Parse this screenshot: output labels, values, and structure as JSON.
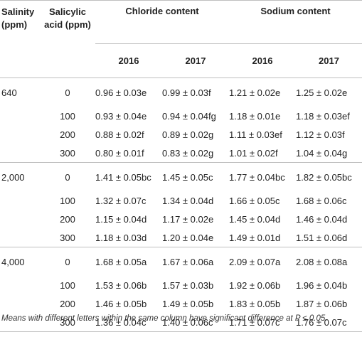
{
  "table": {
    "headers": {
      "salinity": "Salinity",
      "salinity_unit": "(ppm)",
      "salicylic": "Salicylic",
      "salicylic_unit": "acid (ppm)",
      "chloride": "Chloride content",
      "sodium": "Sodium content",
      "y2016a": "2016",
      "y2017a": "2017",
      "y2016b": "2016",
      "y2017b": "2017"
    },
    "groups": [
      {
        "salinity": "640",
        "rows": [
          {
            "sa": "0",
            "cl16": "0.96 ± 0.03e",
            "cl17": "0.99 ± 0.03f",
            "na16": "1.21 ± 0.02e",
            "na17": "1.25 ± 0.02e"
          },
          {
            "sa": "100",
            "cl16": "0.93 ± 0.04e",
            "cl17": "0.94 ± 0.04fg",
            "na16": "1.18 ± 0.01e",
            "na17": "1.18 ± 0.03ef"
          },
          {
            "sa": "200",
            "cl16": "0.88 ± 0.02f",
            "cl17": "0.89 ± 0.02g",
            "na16": "1.11 ± 0.03ef",
            "na17": "1.12 ± 0.03f"
          },
          {
            "sa": "300",
            "cl16": "0.80 ± 0.01f",
            "cl17": "0.83 ± 0.02g",
            "na16": "1.01 ± 0.02f",
            "na17": "1.04 ± 0.04g"
          }
        ]
      },
      {
        "salinity": "2,000",
        "rows": [
          {
            "sa": "0",
            "cl16": "1.41 ± 0.05bc",
            "cl17": "1.45 ± 0.05c",
            "na16": "1.77 ± 0.04bc",
            "na17": "1.82 ± 0.05bc"
          },
          {
            "sa": "100",
            "cl16": "1.32 ± 0.07c",
            "cl17": "1.34 ± 0.04d",
            "na16": "1.66 ± 0.05c",
            "na17": "1.68 ± 0.06c"
          },
          {
            "sa": "200",
            "cl16": "1.15 ± 0.04d",
            "cl17": "1.17 ± 0.02e",
            "na16": "1.45 ± 0.04d",
            "na17": "1.46 ± 0.04d"
          },
          {
            "sa": "300",
            "cl16": "1.18 ± 0.03d",
            "cl17": "1.20 ± 0.04e",
            "na16": "1.49 ± 0.01d",
            "na17": "1.51 ± 0.06d"
          }
        ]
      },
      {
        "salinity": "4,000",
        "rows": [
          {
            "sa": "0",
            "cl16": "1.68 ± 0.05a",
            "cl17": "1.67 ± 0.06a",
            "na16": "2.09 ± 0.07a",
            "na17": "2.08 ± 0.08a"
          },
          {
            "sa": "100",
            "cl16": "1.53 ± 0.06b",
            "cl17": "1.57 ± 0.03b",
            "na16": "1.92 ± 0.06b",
            "na17": "1.96 ± 0.04b"
          },
          {
            "sa": "200",
            "cl16": "1.46 ± 0.05b",
            "cl17": "1.49 ± 0.05b",
            "na16": "1.83 ± 0.05b",
            "na17": "1.87 ± 0.06b"
          },
          {
            "sa": "300",
            "cl16": "1.36 ± 0.04c",
            "cl17": "1.40 ± 0.06c",
            "na16": "1.71 ± 0.07c",
            "na17": "1.76 ± 0.07c"
          }
        ]
      }
    ],
    "note": "Means with different letters within the same column have significant difference at P ≤ 0.05."
  }
}
